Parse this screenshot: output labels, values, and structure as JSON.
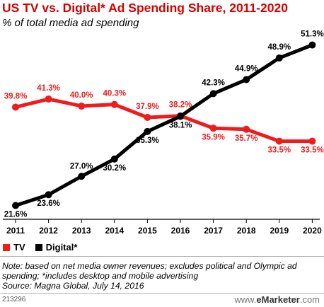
{
  "chart_data": {
    "type": "line",
    "title": "US TV vs. Digital* Ad Spending Share, 2011-2020",
    "subtitle": "% of total media ad spending",
    "x": [
      "2011",
      "2012",
      "2013",
      "2014",
      "2015",
      "2016",
      "2017",
      "2018",
      "2019",
      "2020"
    ],
    "series": [
      {
        "name": "TV",
        "color": "#ee1c1c",
        "values": [
          39.8,
          41.3,
          40.0,
          40.3,
          37.9,
          38.2,
          35.9,
          35.7,
          33.5,
          33.5
        ],
        "labels": [
          "39.8%",
          "41.3%",
          "40.0%",
          "40.3%",
          "37.9%",
          "38.2%",
          "35.9%",
          "35.7%",
          "33.5%",
          "33.5%"
        ]
      },
      {
        "name": "Digital*",
        "color": "#000000",
        "values": [
          21.6,
          23.6,
          27.0,
          30.2,
          35.3,
          38.1,
          42.3,
          44.9,
          48.9,
          51.3
        ],
        "labels": [
          "21.6%",
          "23.6%",
          "27.0%",
          "30.2%",
          "35.3%",
          "38.1%",
          "42.3%",
          "44.9%",
          "48.9%",
          "51.3%"
        ]
      }
    ],
    "ylim": [
      18,
      54
    ],
    "grid": false,
    "legend": "bottom-left"
  },
  "footer": {
    "note": "Note: based on net media owner revenues; excludes political and Olympic ad spending; *includes desktop and mobile advertising",
    "source": "Source: Magna Global, July 14, 2016",
    "chart_id": "213296",
    "brand_prefix": "www.",
    "brand_name": "eMarketer",
    "brand_suffix": ".com"
  }
}
